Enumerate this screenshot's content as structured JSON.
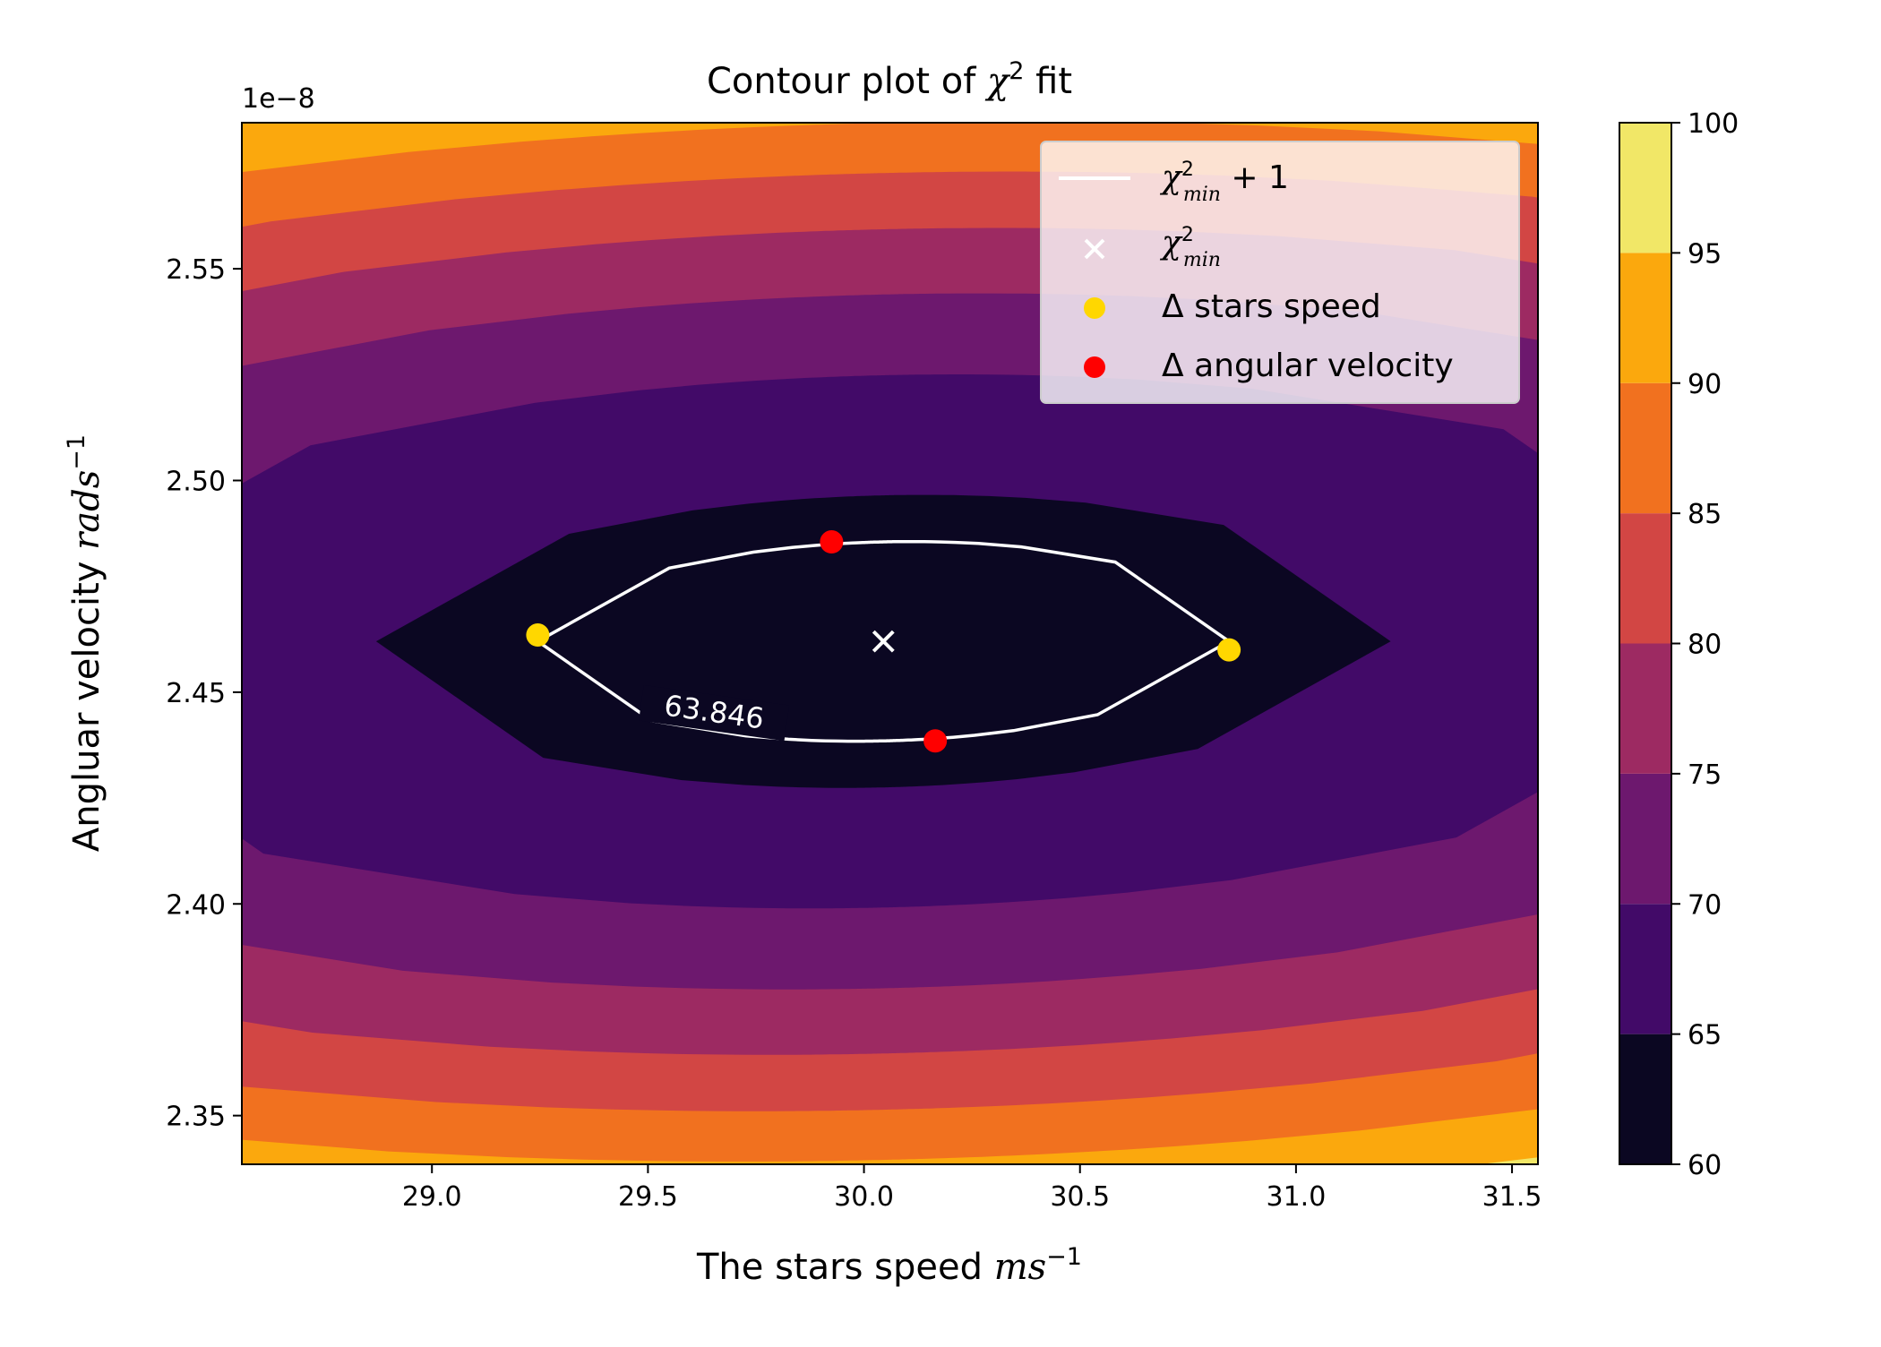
{
  "chart_data": {
    "type": "contour",
    "title": {
      "text": "Contour plot of ",
      "math": "χ",
      "sup": "2",
      "suffix": " fit"
    },
    "xlabel": {
      "text": "The stars speed ",
      "math": "ms",
      "sup": "−1"
    },
    "ylabel": {
      "text": "Angluar velocity ",
      "math": "rads",
      "sup": "−1"
    },
    "y_offset_label": "1e−8",
    "xlim": [
      28.56,
      31.56
    ],
    "ylim": [
      2.3385,
      2.5845
    ],
    "x_ticks": [
      29.0,
      29.5,
      30.0,
      30.5,
      31.0,
      31.5
    ],
    "x_tick_labels": [
      "29.0",
      "29.5",
      "30.0",
      "30.5",
      "31.0",
      "31.5"
    ],
    "y_ticks": [
      2.35,
      2.4,
      2.45,
      2.5,
      2.55
    ],
    "y_tick_labels": [
      "2.35",
      "2.40",
      "2.45",
      "2.50",
      "2.55"
    ],
    "colorbar": {
      "levels": [
        60,
        65,
        70,
        75,
        80,
        85,
        90,
        95,
        100
      ],
      "tick_labels": [
        "60",
        "65",
        "70",
        "75",
        "80",
        "85",
        "90",
        "95",
        "100"
      ],
      "colors": [
        "#0b0722",
        "#420a68",
        "#6d186e",
        "#9d2a62",
        "#d24644",
        "#f1711f",
        "#fba80d",
        "#f1e767"
      ]
    },
    "chi2_min": {
      "x": 30.045,
      "y": 2.462,
      "value": 62.846
    },
    "chi2_min_plus_one_contour": {
      "level": 63.846,
      "label": "63.846"
    },
    "delta_stars_speed_points": [
      {
        "x": 29.245,
        "y": 2.4635
      },
      {
        "x": 30.845,
        "y": 2.46
      }
    ],
    "delta_angular_velocity_points": [
      {
        "x": 29.925,
        "y": 2.4855
      },
      {
        "x": 30.165,
        "y": 2.4385
      }
    ],
    "legend": {
      "placement": "upper right",
      "entries": [
        {
          "label_main": "χ",
          "label_sup": "2",
          "label_sub": "min",
          "label_tail": " + 1",
          "marker": "line",
          "color": "#ffffff"
        },
        {
          "label_main": "χ",
          "label_sup": "2",
          "label_sub": "min",
          "label_tail": "",
          "marker": "x",
          "color": "#ffffff"
        },
        {
          "label_main": "Δ stars speed",
          "marker": "circle",
          "color": "#ffd700"
        },
        {
          "label_main": "Δ angular velocity",
          "marker": "circle",
          "color": "#ff0000"
        }
      ]
    }
  }
}
